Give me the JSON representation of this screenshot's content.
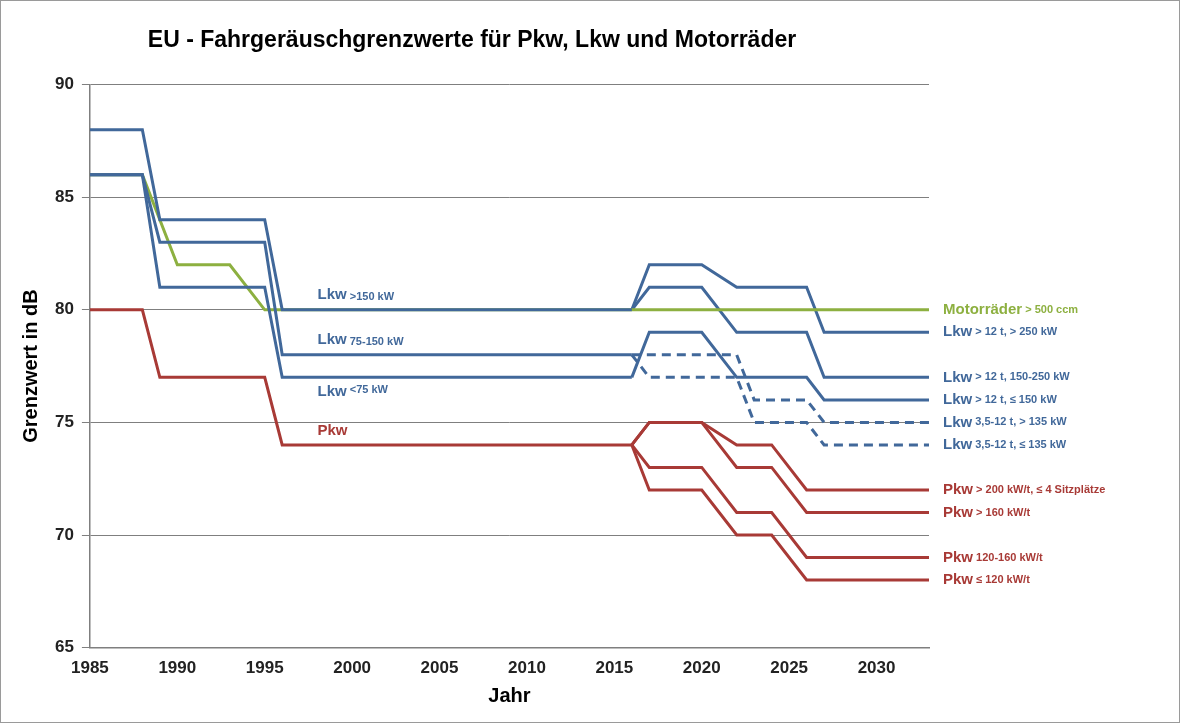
{
  "chart_data": {
    "type": "line",
    "title": "EU - Fahrgeräuschgrenzwerte für Pkw, Lkw und Motorräder",
    "x_label": "Jahr",
    "y_label": "Grenzwert in dB",
    "xlim": [
      1985,
      2033
    ],
    "xticks": [
      1985,
      1990,
      1995,
      2000,
      2005,
      2010,
      2015,
      2020,
      2025,
      2030
    ],
    "ylim": [
      65,
      90
    ],
    "yticks": [
      65,
      70,
      75,
      80,
      85,
      90
    ],
    "grid": "y",
    "series": [
      {
        "name": "Lkw >150 kW",
        "color": "#41689a",
        "line_style": "solid",
        "x": [
          1985,
          1988,
          1989,
          1995,
          1996,
          2016
        ],
        "values": [
          88,
          88,
          84,
          84,
          80,
          80
        ]
      },
      {
        "name": "Lkw 75-150 kW",
        "color": "#41689a",
        "line_style": "solid",
        "x": [
          1985,
          1988,
          1989,
          1995,
          1996,
          2016
        ],
        "values": [
          86,
          86,
          83,
          83,
          78,
          78
        ]
      },
      {
        "name": "Lkw <75 kW",
        "color": "#41689a",
        "line_style": "solid",
        "x": [
          1985,
          1988,
          1989,
          1995,
          1996,
          2016
        ],
        "values": [
          86,
          86,
          81,
          81,
          77,
          77
        ]
      },
      {
        "name": "Pkw",
        "color": "#a83a36",
        "line_style": "solid",
        "x": [
          1985,
          1988,
          1989,
          1995,
          1996,
          2016
        ],
        "values": [
          80,
          80,
          77,
          77,
          74,
          74
        ]
      },
      {
        "name": "Motorräder > 500 ccm",
        "color": "#8db040",
        "line_style": "solid",
        "x": [
          1985,
          1988,
          1990,
          1993,
          1995,
          2033
        ],
        "values": [
          86,
          86,
          82,
          82,
          80,
          80
        ]
      },
      {
        "name": "Lkw > 12 t, > 250 kW",
        "color": "#41689a",
        "line_style": "solid",
        "x": [
          2016,
          2017,
          2020,
          2022,
          2026,
          2027,
          2033
        ],
        "values": [
          80,
          82,
          82,
          81,
          81,
          79,
          79
        ]
      },
      {
        "name": "Lkw > 12 t, 150-250 kW",
        "color": "#41689a",
        "line_style": "solid",
        "x": [
          2016,
          2017,
          2020,
          2022,
          2026,
          2027,
          2033
        ],
        "values": [
          80,
          81,
          81,
          79,
          79,
          77,
          77
        ]
      },
      {
        "name": "Lkw > 12 t, ≤ 150 kW",
        "color": "#41689a",
        "line_style": "solid",
        "x": [
          2016,
          2017,
          2020,
          2022,
          2026,
          2027,
          2033
        ],
        "values": [
          77,
          79,
          79,
          77,
          77,
          76,
          76
        ]
      },
      {
        "name": "Lkw 3,5-12 t, > 135 kW",
        "color": "#41689a",
        "line_style": "dashed",
        "x": [
          2016,
          2017,
          2022,
          2023,
          2026,
          2027,
          2033
        ],
        "values": [
          78,
          78,
          78,
          76,
          76,
          75,
          75
        ]
      },
      {
        "name": "Lkw 3,5-12 t, ≤ 135 kW",
        "color": "#41689a",
        "line_style": "dashed",
        "x": [
          2016,
          2017,
          2022,
          2023,
          2026,
          2027,
          2033
        ],
        "values": [
          78,
          77,
          77,
          75,
          75,
          74,
          74
        ]
      },
      {
        "name": "Pkw > 200 kW/t, ≤ 4 Sitzplätze",
        "color": "#a83a36",
        "line_style": "solid",
        "x": [
          2016,
          2017,
          2020,
          2022,
          2024,
          2026,
          2033
        ],
        "values": [
          74,
          75,
          75,
          74,
          74,
          72,
          72
        ]
      },
      {
        "name": "Pkw > 160 kW/t",
        "color": "#a83a36",
        "line_style": "solid",
        "x": [
          2016,
          2017,
          2020,
          2022,
          2024,
          2026,
          2033
        ],
        "values": [
          74,
          75,
          75,
          73,
          73,
          71,
          71
        ]
      },
      {
        "name": "Pkw 120-160 kW/t",
        "color": "#a83a36",
        "line_style": "solid",
        "x": [
          2016,
          2017,
          2020,
          2022,
          2024,
          2026,
          2033
        ],
        "values": [
          74,
          73,
          73,
          71,
          71,
          69,
          69
        ]
      },
      {
        "name": "Pkw ≤ 120 kW/t",
        "color": "#a83a36",
        "line_style": "solid",
        "x": [
          2016,
          2017,
          2020,
          2022,
          2024,
          2026,
          2033
        ],
        "values": [
          74,
          72,
          72,
          70,
          70,
          68,
          68
        ]
      }
    ]
  }
}
